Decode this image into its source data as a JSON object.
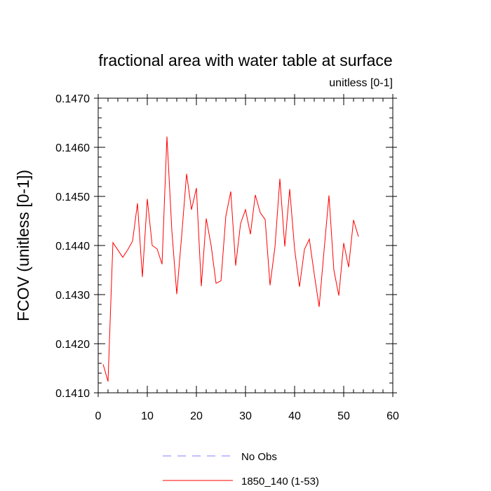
{
  "chart_data": {
    "type": "line",
    "title": "fractional area with water table at surface",
    "subtitle": "unitless [0-1]",
    "ylabel": "FCOV  (unitless [0-1])",
    "xlabel": "",
    "xlim": [
      0,
      60
    ],
    "ylim": [
      0.141,
      0.147
    ],
    "xticks": [
      "0",
      "10",
      "20",
      "30",
      "40",
      "50",
      "60"
    ],
    "yticks": [
      "0.1410",
      "0.1420",
      "0.1430",
      "0.1440",
      "0.1450",
      "0.1460",
      "0.1470"
    ],
    "legend_position": "bottom",
    "series": [
      {
        "name": "No Obs",
        "color": "#8080ff",
        "style": "dashed",
        "values": []
      },
      {
        "name": "1850_140 (1-53)",
        "color": "#ff0000",
        "style": "solid",
        "x": [
          1,
          2,
          3,
          4,
          5,
          6,
          7,
          8,
          9,
          10,
          11,
          12,
          13,
          14,
          15,
          16,
          17,
          18,
          19,
          20,
          21,
          22,
          23,
          24,
          25,
          26,
          27,
          28,
          29,
          30,
          31,
          32,
          33,
          34,
          35,
          36,
          37,
          38,
          39,
          40,
          41,
          42,
          43,
          44,
          45,
          46,
          47,
          48,
          49,
          50,
          51,
          52,
          53
        ],
        "values": [
          0.14158,
          0.14123,
          0.14406,
          0.14391,
          0.14376,
          0.14391,
          0.14409,
          0.14486,
          0.14336,
          0.14495,
          0.144,
          0.14393,
          0.14362,
          0.14622,
          0.1443,
          0.14301,
          0.1442,
          0.14546,
          0.14473,
          0.14517,
          0.14317,
          0.14455,
          0.144,
          0.14323,
          0.14328,
          0.1446,
          0.1451,
          0.14359,
          0.14445,
          0.14473,
          0.14423,
          0.14503,
          0.14467,
          0.14453,
          0.14319,
          0.14397,
          0.14536,
          0.14398,
          0.14515,
          0.14393,
          0.14316,
          0.14392,
          0.14413,
          0.14342,
          0.14275,
          0.1439,
          0.14502,
          0.1435,
          0.14298,
          0.14405,
          0.14356,
          0.14452,
          0.14418
        ]
      }
    ]
  }
}
